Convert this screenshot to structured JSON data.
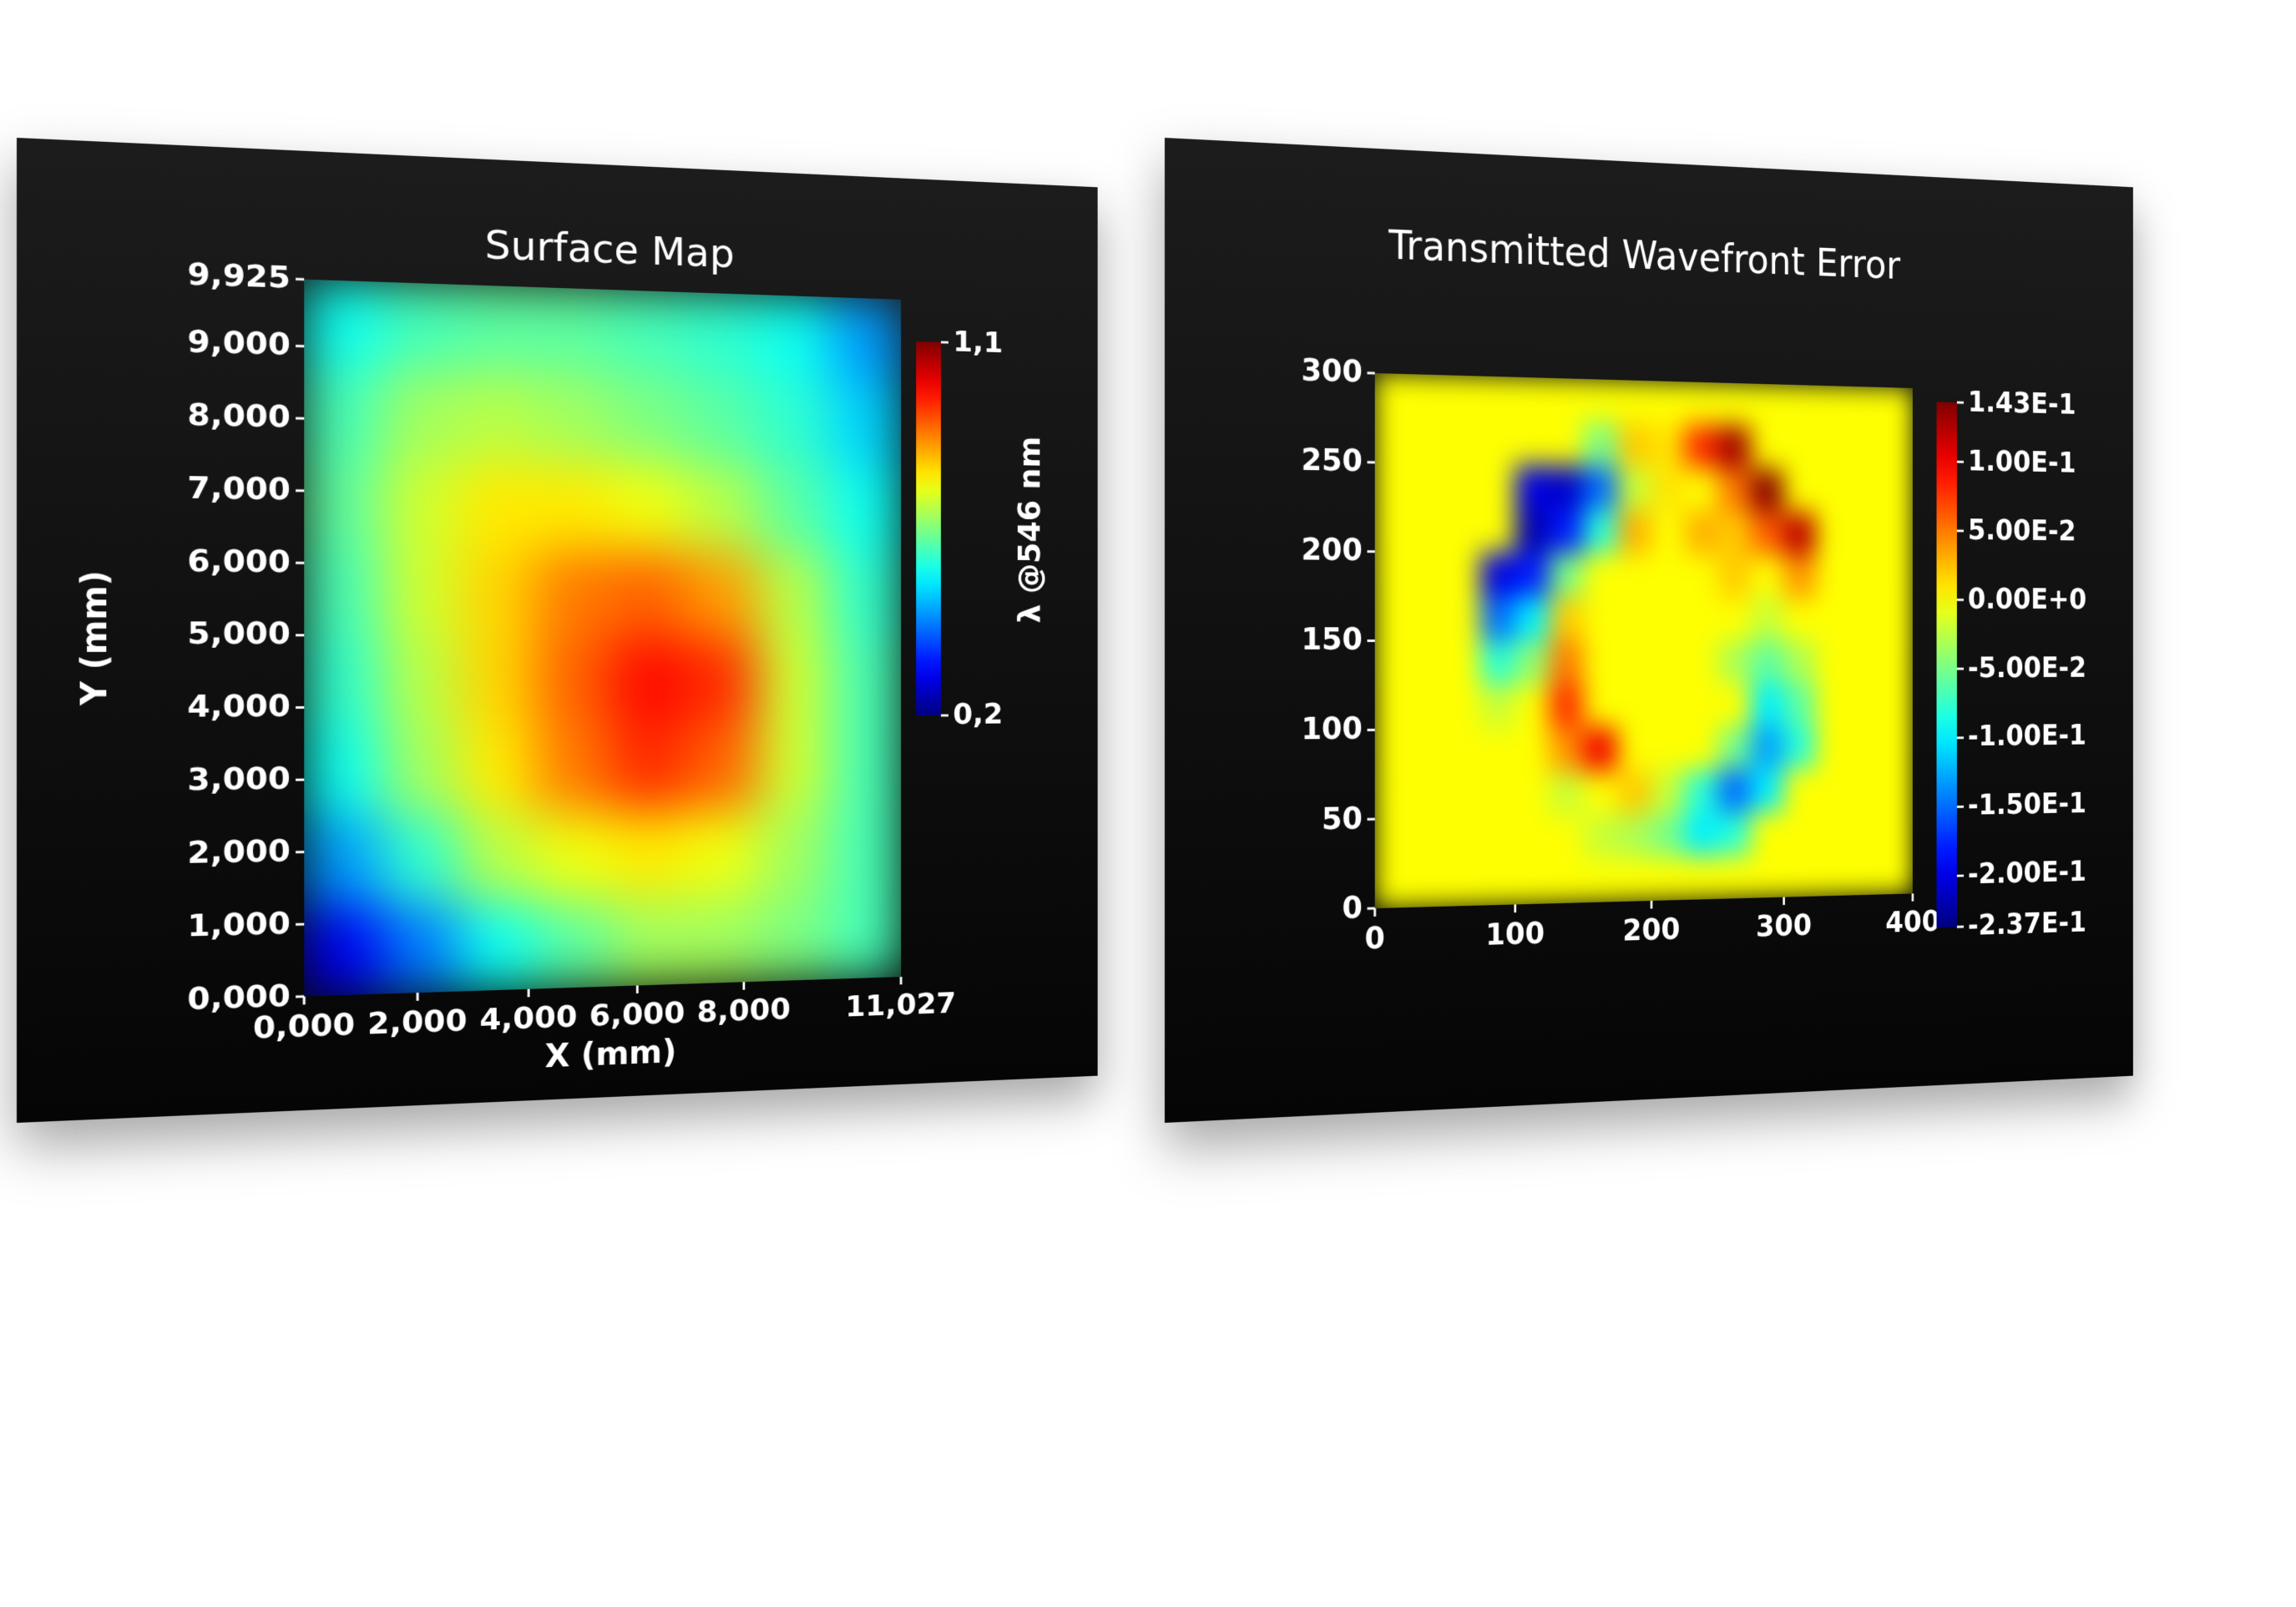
{
  "chart_data": [
    {
      "type": "heatmap",
      "title": "Surface Map",
      "xlabel": "X (mm)",
      "ylabel": "Y (mm)",
      "xlim": [
        0,
        11.027
      ],
      "ylim": [
        0,
        9.925
      ],
      "xticks": [
        {
          "value": 0,
          "label": "0,000"
        },
        {
          "value": 2,
          "label": "2,000"
        },
        {
          "value": 4,
          "label": "4,000"
        },
        {
          "value": 6,
          "label": "6,000"
        },
        {
          "value": 8,
          "label": "8,000"
        },
        {
          "value": 11.027,
          "label": "11,027"
        }
      ],
      "yticks": [
        {
          "value": 0,
          "label": "0,000"
        },
        {
          "value": 1,
          "label": "1,000"
        },
        {
          "value": 2,
          "label": "2,000"
        },
        {
          "value": 3,
          "label": "3,000"
        },
        {
          "value": 4,
          "label": "4,000"
        },
        {
          "value": 5,
          "label": "5,000"
        },
        {
          "value": 6,
          "label": "6,000"
        },
        {
          "value": 7,
          "label": "7,000"
        },
        {
          "value": 8,
          "label": "8,000"
        },
        {
          "value": 9,
          "label": "9,000"
        },
        {
          "value": 9.925,
          "label": "9,925"
        }
      ],
      "colormap": "jet",
      "colorbar": {
        "label": "λ @546 nm",
        "lim": [
          0.2,
          1.1
        ],
        "ticks": [
          {
            "value": 0.2,
            "label": "0,2"
          },
          {
            "value": 1.1,
            "label": "1,1"
          }
        ]
      },
      "z": [
        [
          0.55,
          0.6,
          0.62,
          0.62,
          0.6,
          0.58,
          0.55,
          0.45
        ],
        [
          0.6,
          0.68,
          0.7,
          0.68,
          0.65,
          0.62,
          0.58,
          0.5
        ],
        [
          0.62,
          0.72,
          0.78,
          0.78,
          0.75,
          0.7,
          0.62,
          0.55
        ],
        [
          0.6,
          0.72,
          0.8,
          0.88,
          0.9,
          0.85,
          0.7,
          0.58
        ],
        [
          0.58,
          0.7,
          0.8,
          0.9,
          0.98,
          0.95,
          0.72,
          0.6
        ],
        [
          0.55,
          0.68,
          0.78,
          0.88,
          0.95,
          0.9,
          0.72,
          0.6
        ],
        [
          0.45,
          0.58,
          0.7,
          0.75,
          0.78,
          0.75,
          0.68,
          0.6
        ],
        [
          0.3,
          0.42,
          0.55,
          0.62,
          0.68,
          0.68,
          0.65,
          0.6
        ]
      ]
    },
    {
      "type": "heatmap",
      "title": "Transmitted Wavefront Error",
      "xlim": [
        0,
        400
      ],
      "ylim": [
        0,
        300
      ],
      "xticks": [
        0,
        100,
        200,
        300,
        400
      ],
      "yticks": [
        0,
        50,
        100,
        150,
        200,
        250,
        300
      ],
      "colormap": "jet",
      "colorbar": {
        "lim": [
          -0.237,
          0.143
        ],
        "ticks": [
          {
            "value": 0.143,
            "label": "1.43E-1"
          },
          {
            "value": 0.1,
            "label": "1.00E-1"
          },
          {
            "value": 0.05,
            "label": "5.00E-2"
          },
          {
            "value": 0,
            "label": "0.00E+0"
          },
          {
            "value": -0.05,
            "label": "-5.00E-2"
          },
          {
            "value": -0.1,
            "label": "-1.00E-1"
          },
          {
            "value": -0.15,
            "label": "-1.50E-1"
          },
          {
            "value": -0.2,
            "label": "-2.00E-1"
          },
          {
            "value": -0.237,
            "label": "-2.37E-1"
          }
        ]
      },
      "z": [
        [
          0,
          0,
          0,
          0,
          0,
          0,
          0,
          0,
          0,
          0,
          0,
          0,
          0,
          0,
          0,
          0
        ],
        [
          0,
          0,
          0,
          0,
          0,
          0,
          -0.05,
          0.02,
          0.01,
          0.08,
          0.13,
          0,
          0,
          0,
          0,
          0
        ],
        [
          0,
          0,
          0,
          0,
          -0.2,
          -0.21,
          -0.15,
          -0.02,
          0.01,
          0,
          0.05,
          0.14,
          0,
          0,
          0,
          0
        ],
        [
          0,
          0,
          0,
          0,
          -0.22,
          -0.18,
          -0.08,
          0.03,
          0,
          0.03,
          0.02,
          0.06,
          0.12,
          0,
          0,
          0
        ],
        [
          0,
          0,
          0,
          -0.2,
          -0.18,
          -0.05,
          0,
          0,
          0,
          0,
          0.02,
          0,
          0.04,
          0,
          0,
          0
        ],
        [
          0,
          0,
          0,
          -0.15,
          -0.1,
          0.02,
          0,
          0,
          0,
          0,
          0,
          -0.02,
          0,
          0,
          0,
          0
        ],
        [
          0,
          0,
          0,
          -0.08,
          -0.04,
          0.05,
          0,
          0,
          0,
          0,
          -0.03,
          -0.06,
          -0.03,
          0,
          0,
          0
        ],
        [
          0,
          0,
          0,
          -0.02,
          0,
          0.08,
          0,
          0,
          0,
          0,
          0,
          -0.1,
          -0.06,
          0,
          0,
          0
        ],
        [
          0,
          0,
          0,
          0,
          0,
          0.04,
          0.1,
          0,
          0,
          0,
          -0.05,
          -0.13,
          -0.08,
          0,
          0,
          0
        ],
        [
          0,
          0,
          0,
          0,
          0,
          -0.02,
          0,
          0.02,
          -0.02,
          -0.08,
          -0.15,
          -0.1,
          0,
          0,
          0,
          0
        ],
        [
          0,
          0,
          0,
          0,
          0,
          0,
          -0.02,
          -0.03,
          -0.05,
          -0.1,
          -0.08,
          0,
          0,
          0,
          0,
          0
        ],
        [
          0,
          0,
          0,
          0,
          0,
          0,
          0,
          0,
          0,
          0,
          0,
          0,
          0,
          0,
          0,
          0
        ]
      ]
    }
  ]
}
